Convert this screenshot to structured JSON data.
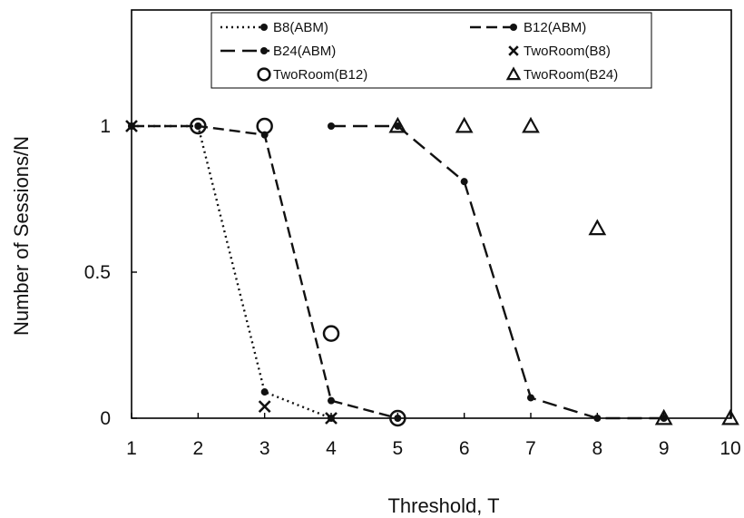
{
  "chart_data": {
    "type": "line",
    "xlabel": "Threshold, T",
    "ylabel": "Number of Sessions/N",
    "xlim": [
      1,
      10
    ],
    "ylim": [
      0,
      1.25
    ],
    "x_ticks": [
      "1",
      "2",
      "3",
      "4",
      "5",
      "6",
      "7",
      "8",
      "9",
      "10"
    ],
    "y_ticks": [
      "0",
      "0.5",
      "1"
    ],
    "grid": false,
    "legend_position": "top",
    "series": [
      {
        "name": "B8(ABM)",
        "style": "dotted-line-dot",
        "x": [
          1,
          2,
          3,
          4
        ],
        "y": [
          1,
          1,
          0.09,
          0
        ]
      },
      {
        "name": "B12(ABM)",
        "style": "dashed-line-dot",
        "x": [
          1,
          2,
          3,
          4,
          5
        ],
        "y": [
          1,
          1,
          0.97,
          0.06,
          0
        ]
      },
      {
        "name": "B24(ABM)",
        "style": "long-dashed-line-dot",
        "x": [
          4,
          5,
          6,
          7,
          8,
          9
        ],
        "y": [
          1,
          1,
          0.81,
          0.07,
          0,
          0
        ]
      },
      {
        "name": "TwoRoom(B8)",
        "style": "marker-x",
        "x": [
          1,
          3,
          4
        ],
        "y": [
          1,
          0.04,
          0
        ]
      },
      {
        "name": "TwoRoom(B12)",
        "style": "marker-circle",
        "x": [
          2,
          3,
          4,
          5
        ],
        "y": [
          1,
          1,
          0.29,
          0
        ]
      },
      {
        "name": "TwoRoom(B24)",
        "style": "marker-triangle",
        "x": [
          5,
          6,
          7,
          8,
          9,
          10
        ],
        "y": [
          1,
          1,
          1,
          0.65,
          0,
          0
        ]
      }
    ]
  }
}
